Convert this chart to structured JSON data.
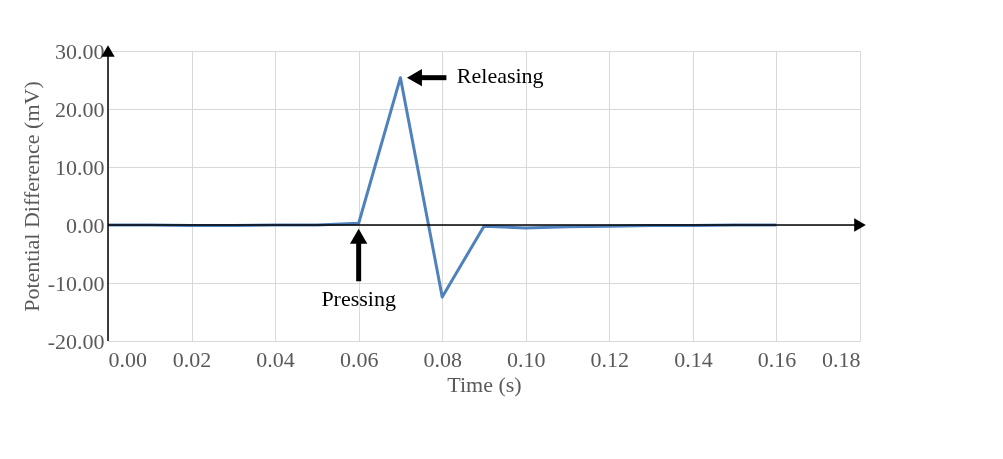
{
  "chart_data": {
    "type": "line",
    "xlabel": "Time (s)",
    "ylabel": "Potential Difference (mV)",
    "x": [
      0.0,
      0.01,
      0.02,
      0.03,
      0.04,
      0.05,
      0.06,
      0.07,
      0.08,
      0.09,
      0.1,
      0.11,
      0.12,
      0.13,
      0.14,
      0.15,
      0.16
    ],
    "series": [
      {
        "color": "#4f81bd",
        "values": [
          0.0,
          0.0,
          -0.1,
          -0.1,
          0.0,
          0.0,
          0.3,
          25.4,
          -12.4,
          -0.2,
          -0.5,
          -0.3,
          -0.2,
          -0.1,
          -0.1,
          0.0,
          0.0
        ]
      }
    ],
    "xlim": [
      0,
      0.18
    ],
    "ylim": [
      -20,
      30
    ],
    "xticks": [
      {
        "value": 0,
        "label": "0.00"
      },
      {
        "value": 0.02,
        "label": "0.02"
      },
      {
        "value": 0.04,
        "label": "0.04"
      },
      {
        "value": 0.06,
        "label": "0.06"
      },
      {
        "value": 0.08,
        "label": "0.08"
      },
      {
        "value": 0.1,
        "label": "0.10"
      },
      {
        "value": 0.12,
        "label": "0.12"
      },
      {
        "value": 0.14,
        "label": "0.14"
      },
      {
        "value": 0.16,
        "label": "0.16"
      },
      {
        "value": 0.18,
        "label": "0.18"
      }
    ],
    "yticks": [
      {
        "value": -20,
        "label": "-20.00"
      },
      {
        "value": -10,
        "label": "-10.00"
      },
      {
        "value": 0,
        "label": "0.00"
      },
      {
        "value": 10,
        "label": "10.00"
      },
      {
        "value": 20,
        "label": "20.00"
      },
      {
        "value": 30,
        "label": "30.00"
      }
    ],
    "grid": true,
    "marker": "none",
    "line_style": "solid",
    "annotations": [
      {
        "text": "Pressing",
        "x": 0.06,
        "y": 0.3
      },
      {
        "text": "Releasing",
        "x": 0.07,
        "y": 25.4
      }
    ]
  }
}
